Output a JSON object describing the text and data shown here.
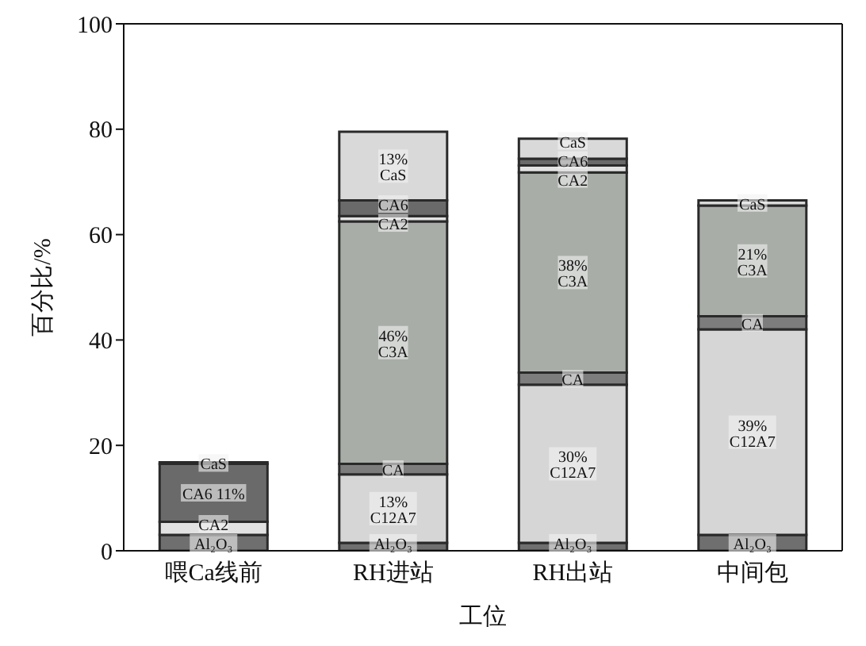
{
  "chart_data": {
    "type": "bar",
    "stacked": true,
    "xlabel": "工位",
    "ylabel": "百分比/%",
    "categories": [
      "喂Ca线前",
      "RH进站",
      "RH出站",
      "中间包"
    ],
    "ylim": [
      0,
      100
    ],
    "yticks": [
      0,
      20,
      40,
      60,
      80,
      100
    ],
    "series": [
      {
        "color": "#6f6f6f",
        "values": [
          3,
          1.5,
          1.5,
          3
        ],
        "value_labels": [
          "Al₂O₃",
          "Al₂O₃",
          "Al₂O₃",
          "Al₂O₃"
        ]
      },
      {
        "color": "#d6d6d6",
        "values": [
          0,
          13,
          30,
          39
        ],
        "value_labels": [
          null,
          "13%\nC12A7",
          "30%\nC12A7",
          "39%\nC12A7"
        ]
      },
      {
        "color": "#7d7d7d",
        "values": [
          0,
          2,
          2.3,
          2.5
        ],
        "value_labels": [
          null,
          "CA",
          "CA",
          "CA"
        ]
      },
      {
        "color": "#a8ada8",
        "values": [
          0,
          46,
          38,
          21
        ],
        "value_labels": [
          null,
          "46%\nC3A",
          "38%\nC3A",
          "21%\nC3A"
        ]
      },
      {
        "color": "#e2e2e2",
        "values": [
          2.5,
          1,
          1.3,
          0
        ],
        "value_labels": [
          "CA2",
          "CA2",
          "CA2",
          null
        ]
      },
      {
        "color": "#6a6a6a",
        "values": [
          11,
          3,
          1.3,
          0
        ],
        "value_labels": [
          "CA6 11%",
          "CA6",
          "CA6",
          null
        ]
      },
      {
        "color": "#d9d9d9",
        "values": [
          0.3,
          13,
          3.8,
          1
        ],
        "value_labels": [
          "CaS",
          "13%\nCaS",
          "CaS",
          "CaS"
        ]
      }
    ]
  }
}
